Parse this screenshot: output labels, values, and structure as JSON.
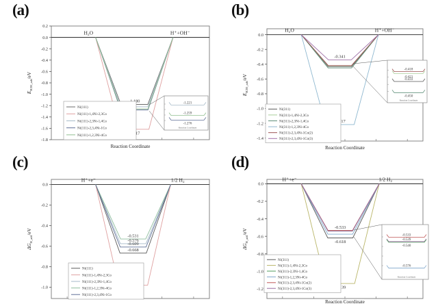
{
  "figure": {
    "background": "#ffffff"
  },
  "chart_data": [
    {
      "id": "a",
      "type": "line",
      "panel_label": "(a)",
      "xlabel": "Reaction Coordinate",
      "ylabel": {
        "sym": "E",
        "sub": "H2O_ads",
        "unit": "/eV"
      },
      "left_state": "H₂O",
      "right_state": "H⁺+OH⁻",
      "ylim": [
        0.2,
        -1.8
      ],
      "yticks": [
        "0.2",
        "0.0",
        "-0.2",
        "-0.4",
        "-0.6",
        "-0.8",
        "-1.0",
        "-1.2",
        "-1.4",
        "-1.6",
        "-1.8"
      ],
      "series": [
        {
          "name": "Ni(111)",
          "value": -1.18,
          "color": "#6b6b6b"
        },
        {
          "name": "Ni(111)-1,4Ni-2,3Co",
          "value": -1.617,
          "color": "#dfa0a0"
        },
        {
          "name": "Ni(111)-2,3Ni-1,4Co",
          "value": -1.221,
          "color": "#a6bac8"
        },
        {
          "name": "Ni(111)-2,3,4Ni-1Co",
          "value": -1.276,
          "color": "#5f6f96"
        },
        {
          "name": "Ni(111)-1,2,3Ni-4Co",
          "value": -1.259,
          "color": "#8fbe8f"
        }
      ],
      "annotations": [
        {
          "text": "-1.180",
          "value": -1.18,
          "pos": "above"
        },
        {
          "text": "-1.617",
          "value": -1.617,
          "pos": "below"
        }
      ],
      "inset": {
        "values": [
          {
            "text": "-1.221",
            "value": -1.221
          },
          {
            "text": "-1.259",
            "value": -1.259
          },
          {
            "text": "-1.276",
            "value": -1.276
          }
        ],
        "colors": [
          "#a6bac8",
          "#8fbe8f",
          "#5f6f96"
        ],
        "xlabel": "Reaction Coordinate"
      }
    },
    {
      "id": "b",
      "type": "line",
      "panel_label": "(b)",
      "xlabel": "Reaction Coordinate",
      "ylabel": {
        "sym": "E",
        "sub": "H2O_ads",
        "unit": "/eV"
      },
      "left_state": "H₂O",
      "right_state": "H⁺+OH⁻",
      "ylim": [
        0.08,
        -1.44
      ],
      "yticks": [
        "0.0",
        "-0.2",
        "-0.4",
        "-0.6",
        "-0.8",
        "-1.0",
        "-1.2",
        "-1.4"
      ],
      "series": [
        {
          "name": "Ni(311)",
          "value": -0.433,
          "color": "#5a5a5a"
        },
        {
          "name": "Ni(311)-1,4Ni-2,3Co",
          "value": -0.421,
          "color": "#a9cf9a"
        },
        {
          "name": "Ni(311)-2,3Ni-1,4Co",
          "value": -0.45,
          "color": "#5f8f7a"
        },
        {
          "name": "Ni(311)-1,2,3Ni-4Co",
          "value": -1.217,
          "color": "#8fb8d0"
        },
        {
          "name": "Ni(311)-2,3,4Ni-1Co(2)",
          "value": -0.418,
          "color": "#9a5050"
        },
        {
          "name": "Ni(311)-2,3,4Ni-1Co(3)",
          "value": -0.341,
          "color": "#a070a8"
        }
      ],
      "annotations": [
        {
          "text": "-0.341",
          "value": -0.341,
          "pos": "above"
        },
        {
          "text": "-1.217",
          "value": -1.217,
          "pos": "above"
        }
      ],
      "inset": {
        "values": [
          {
            "text": "-0.418",
            "value": -0.418
          },
          {
            "text": "-0.421",
            "value": -0.421
          },
          {
            "text": "-0.433",
            "value": -0.433
          },
          {
            "text": "-0.450",
            "value": -0.45
          }
        ],
        "colors": [
          "#9a5050",
          "#a9cf9a",
          "#5a5a5a",
          "#5f8f7a"
        ],
        "xlabel": "Reaction Coordinate"
      }
    },
    {
      "id": "c",
      "type": "line",
      "panel_label": "(c)",
      "xlabel": "",
      "ylabel": {
        "sym": "ΔG",
        "sub": "H_ads",
        "unit": "/eV"
      },
      "left_state": "H⁺+e⁻",
      "right_state": "1/2 H₂",
      "ylim": [
        0.05,
        -1.11
      ],
      "yticks": [
        "0.0",
        "-0.2",
        "-0.4",
        "-0.6",
        "-0.8",
        "-1.0"
      ],
      "series": [
        {
          "name": "Ni(111)",
          "value": -0.668,
          "color": "#5a5a5a"
        },
        {
          "name": "Ni(111)-1,4Ni-2,3Co",
          "value": -0.981,
          "color": "#dfa0a0"
        },
        {
          "name": "Ni(111)-2,3Ni-1,4Co",
          "value": -0.576,
          "color": "#a6bac8"
        },
        {
          "name": "Ni(111)-1,2,3Ni-4Co",
          "value": -0.531,
          "color": "#8fbe9f"
        },
        {
          "name": "Ni(111)-2,3,4Ni-1Co",
          "value": -0.609,
          "color": "#5f6f96"
        }
      ],
      "annotations": [
        {
          "text": "-0.531",
          "value": -0.531,
          "pos": "above"
        },
        {
          "text": "-0.576",
          "value": -0.576,
          "pos": "above"
        },
        {
          "text": "-0.609",
          "value": -0.609,
          "pos": "above"
        },
        {
          "text": "-0.668",
          "value": -0.668,
          "pos": "above"
        },
        {
          "text": "-0.981",
          "value": -0.981,
          "pos": "above"
        }
      ]
    },
    {
      "id": "d",
      "type": "line",
      "panel_label": "(d)",
      "xlabel": "Reaction Coordinate",
      "ylabel": {
        "sym": "ΔG",
        "sub": "H_ads",
        "unit": "/eV"
      },
      "left_state": "H⁺+e⁻",
      "right_state": "1/2 H₂",
      "ylim": [
        0.05,
        -1.31
      ],
      "yticks": [
        "0.0",
        "-0.2",
        "-0.4",
        "-0.6",
        "-0.8",
        "-1.0",
        "-1.2"
      ],
      "series": [
        {
          "name": "Ni(311)",
          "value": -0.618,
          "color": "#5a5a5a"
        },
        {
          "name": "Ni(311)-1,4Ni-2,3Co",
          "value": -1.139,
          "color": "#b9b568"
        },
        {
          "name": "Ni(311)-2,3Ni-1,4Co",
          "value": -0.54,
          "color": "#4f9e5e"
        },
        {
          "name": "Ni(311)-1,2,3Ni-4Co",
          "value": -0.576,
          "color": "#7fa8cc"
        },
        {
          "name": "Ni(311)-2,3,4Ni-1Co(2)",
          "value": -0.533,
          "color": "#c05858"
        },
        {
          "name": "Ni(311)-2,3,4Ni-1Co(3)",
          "value": -0.539,
          "color": "#9a6aa0"
        }
      ],
      "annotations": [
        {
          "text": "-0.533",
          "value": -0.533,
          "pos": "above"
        },
        {
          "text": "-0.618",
          "value": -0.618,
          "pos": "below"
        },
        {
          "text": "-1.139",
          "value": -1.139,
          "pos": "below"
        }
      ],
      "inset": {
        "values": [
          {
            "text": "-0.533",
            "value": -0.533
          },
          {
            "text": "-0.539",
            "value": -0.539
          },
          {
            "text": "-0.540",
            "value": -0.54
          },
          {
            "text": "-0.576",
            "value": -0.576
          }
        ],
        "colors": [
          "#c05858",
          "#9a6aa0",
          "#4f9e5e",
          "#7fa8cc"
        ],
        "xlabel": "Reaction Coordinate"
      }
    }
  ]
}
